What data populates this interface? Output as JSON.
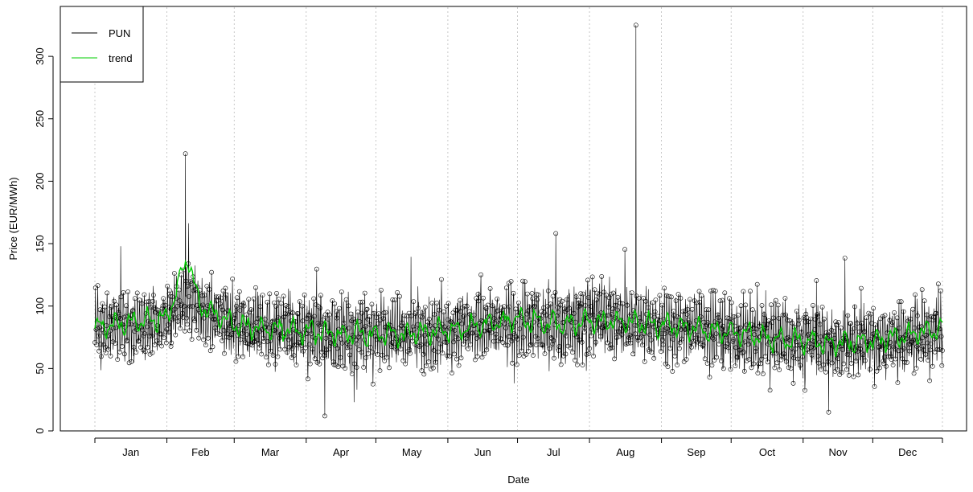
{
  "chart_data": {
    "type": "line",
    "title": "",
    "xlabel": "Date",
    "ylabel": "Price (EUR/MWh)",
    "ylim": [
      0,
      340
    ],
    "yticks": [
      0,
      50,
      100,
      150,
      200,
      250,
      300
    ],
    "xticks_months": [
      "Jan",
      "Feb",
      "Mar",
      "Apr",
      "May",
      "Jun",
      "Jul",
      "Aug",
      "Sep",
      "Oct",
      "Nov",
      "Dec"
    ],
    "x_domain": [
      "2024-01-01",
      "2024-12-31"
    ],
    "grid": "vertical dotted at month boundaries",
    "legend": {
      "position": "top-left",
      "entries": [
        {
          "label": "PUN",
          "color": "#000000"
        },
        {
          "label": "trend",
          "color": "#00cc00"
        }
      ]
    },
    "series": [
      {
        "name": "PUN",
        "color": "#000000",
        "style": "line with open circle markers (hourly, ~8760 points)",
        "approx_profile": {
          "x": [
            "Jan 1",
            "Jan 15",
            "Feb 1",
            "Feb 10",
            "Feb 15",
            "Mar 1",
            "Mar 15",
            "Apr 1",
            "Apr 15",
            "May 1",
            "May 15",
            "Jun 1",
            "Jun 15",
            "Jul 1",
            "Jul 15",
            "Aug 1",
            "Aug 15",
            "Sep 1",
            "Sep 15",
            "Oct 1",
            "Oct 15",
            "Nov 1",
            "Nov 15",
            "Dec 1",
            "Dec 15",
            "Dec 31"
          ],
          "y": [
            80,
            85,
            90,
            110,
            100,
            85,
            82,
            80,
            78,
            77,
            78,
            80,
            85,
            88,
            85,
            90,
            87,
            85,
            82,
            78,
            75,
            72,
            70,
            72,
            74,
            80
          ]
        },
        "notable_points": [
          {
            "x": "Feb 09",
            "y": 222
          },
          {
            "x": "Aug 21",
            "y": 325
          },
          {
            "x": "Apr 09",
            "y": 12
          },
          {
            "x": "Nov 12",
            "y": 15
          }
        ]
      },
      {
        "name": "trend",
        "color": "#00cc00",
        "style": "line",
        "approx_profile": {
          "x": [
            "Jan 1",
            "Jan 15",
            "Feb 1",
            "Feb 10",
            "Feb 15",
            "Mar 1",
            "Mar 15",
            "Apr 1",
            "Apr 15",
            "May 1",
            "May 15",
            "Jun 1",
            "Jun 15",
            "Jul 1",
            "Jul 15",
            "Aug 1",
            "Aug 15",
            "Sep 1",
            "Sep 15",
            "Oct 1",
            "Oct 15",
            "Nov 1",
            "Nov 15",
            "Dec 1",
            "Dec 15",
            "Dec 31"
          ],
          "y": [
            82,
            86,
            90,
            140,
            100,
            85,
            82,
            80,
            78,
            77,
            78,
            80,
            85,
            90,
            85,
            88,
            87,
            85,
            82,
            78,
            75,
            72,
            70,
            72,
            76,
            82
          ]
        }
      }
    ]
  }
}
